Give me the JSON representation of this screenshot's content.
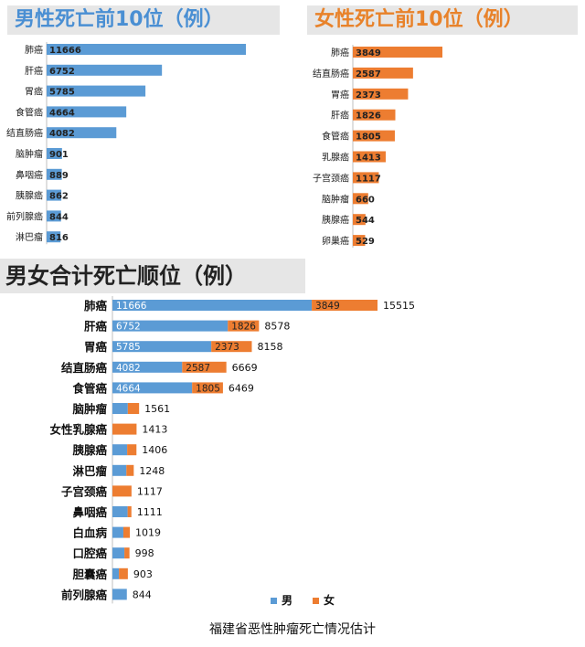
{
  "chart_data": [
    {
      "type": "bar",
      "orientation": "horizontal",
      "title": "男性死亡前10位（例）",
      "categories": [
        "肺癌",
        "肝癌",
        "胃癌",
        "食管癌",
        "结直肠癌",
        "脑肿瘤",
        "鼻咽癌",
        "胰腺癌",
        "前列腺癌",
        "淋巴瘤"
      ],
      "values": [
        11666,
        6752,
        5785,
        4664,
        4082,
        901,
        889,
        862,
        844,
        816
      ],
      "color": "#5b9bd5",
      "grid": false,
      "legend": "none"
    },
    {
      "type": "bar",
      "orientation": "horizontal",
      "title": "女性死亡前10位（例）",
      "categories": [
        "肺癌",
        "结直肠癌",
        "胃癌",
        "肝癌",
        "食管癌",
        "乳腺癌",
        "子宫颈癌",
        "脑肿瘤",
        "胰腺癌",
        "卵巢癌"
      ],
      "values": [
        3849,
        2587,
        2373,
        1826,
        1805,
        1413,
        1117,
        660,
        544,
        529
      ],
      "color": "#ed7d31",
      "grid": false,
      "legend": "none"
    },
    {
      "type": "bar",
      "orientation": "horizontal",
      "stacked": true,
      "title": "男女合计死亡顺位（例）",
      "categories": [
        "肺癌",
        "肝癌",
        "胃癌",
        "结直肠癌",
        "食管癌",
        "脑肿瘤",
        "女性乳腺癌",
        "胰腺癌",
        "淋巴瘤",
        "子宫颈癌",
        "鼻咽癌",
        "白血病",
        "口腔癌",
        "胆囊癌",
        "前列腺癌"
      ],
      "series": [
        {
          "name": "男",
          "color": "#5b9bd5",
          "values": [
            11666,
            6752,
            5785,
            4082,
            4664,
            901,
            0,
            862,
            816,
            0,
            889,
            640,
            700,
            380,
            844
          ]
        },
        {
          "name": "女",
          "color": "#ed7d31",
          "values": [
            3849,
            1826,
            2373,
            2587,
            1805,
            660,
            1413,
            544,
            432,
            1117,
            222,
            379,
            298,
            523,
            0
          ]
        }
      ],
      "totals": [
        15515,
        8578,
        8158,
        6669,
        6469,
        1561,
        1413,
        1406,
        1248,
        1117,
        1111,
        1019,
        998,
        903,
        844
      ],
      "inner_labels": {
        "male": [
          "11666",
          "6752",
          "5785",
          "4082",
          "4664",
          "",
          "",
          "",
          "",
          "",
          "",
          "",
          "",
          "",
          ""
        ],
        "female": [
          "3849",
          "1826",
          "2373",
          "2587",
          "1805",
          "",
          "",
          "",
          "",
          "",
          "",
          "",
          "",
          "",
          ""
        ]
      },
      "grid": false,
      "legend": "bottom-right"
    }
  ],
  "caption": "福建省恶性肿瘤死亡情况估计"
}
